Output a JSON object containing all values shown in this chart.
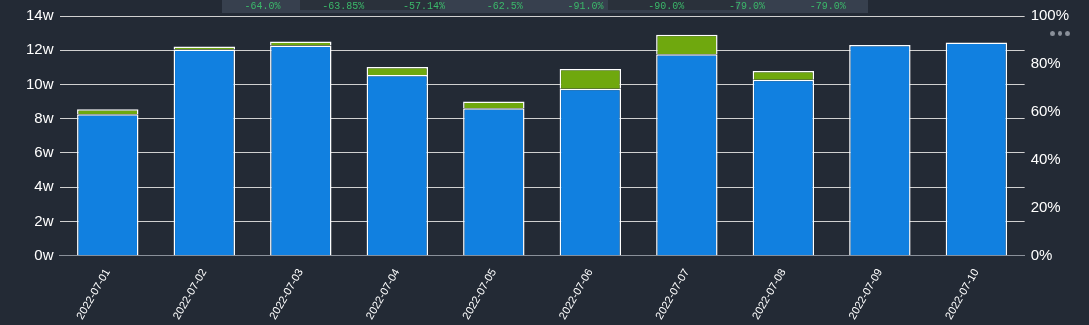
{
  "chart_data": {
    "type": "bar",
    "stacked": true,
    "categories": [
      "2022-07-01",
      "2022-07-02",
      "2022-07-03",
      "2022-07-04",
      "2022-07-05",
      "2022-07-06",
      "2022-07-07",
      "2022-07-08",
      "2022-07-09",
      "2022-07-10"
    ],
    "series": [
      {
        "color": "#1180e0",
        "values": [
          8.26,
          12.05,
          12.28,
          10.56,
          8.61,
          9.75,
          11.76,
          10.27,
          12.3,
          12.45
        ]
      },
      {
        "color": "#6fa80e",
        "values": [
          0.29,
          0.17,
          0.23,
          0.46,
          0.4,
          1.15,
          1.15,
          0.52,
          0,
          0
        ]
      }
    ],
    "ylim": [
      0,
      14
    ],
    "yticks": [
      {
        "value": 0,
        "label": "0w"
      },
      {
        "value": 2,
        "label": "2w"
      },
      {
        "value": 4,
        "label": "4w"
      },
      {
        "value": 6,
        "label": "6w"
      },
      {
        "value": 8,
        "label": "8w"
      },
      {
        "value": 10,
        "label": "10w"
      },
      {
        "value": 12,
        "label": "12w"
      },
      {
        "value": 14,
        "label": "14w"
      }
    ],
    "y2lim": [
      0,
      100
    ],
    "y2ticks": [
      {
        "value": 0,
        "label": "0%"
      },
      {
        "value": 20,
        "label": "20%"
      },
      {
        "value": 40,
        "label": "40%"
      },
      {
        "value": 60,
        "label": "60%"
      },
      {
        "value": 80,
        "label": "80%"
      },
      {
        "value": 100,
        "label": "100%"
      }
    ],
    "grid": "y",
    "annotations": [
      "-64.0%",
      "-63.85%",
      "-57.14%",
      "-62.5%",
      "-91.0%",
      "-90.0%",
      "-79.0%",
      "-79.0%"
    ]
  }
}
